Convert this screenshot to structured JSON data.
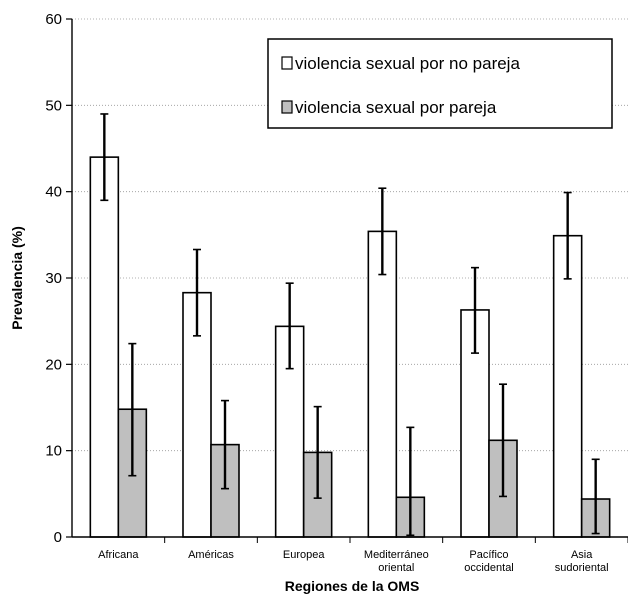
{
  "chart_data": {
    "type": "bar",
    "xlabel": "Regiones de la OMS",
    "ylabel": "Prevalencia (%)",
    "ylim": [
      0,
      60
    ],
    "yticks": [
      0,
      10,
      20,
      30,
      40,
      50,
      60
    ],
    "grid": "horizontal dotted",
    "legend_position": "top-right",
    "categories": [
      [
        "Africana"
      ],
      [
        "Américas"
      ],
      [
        "Europea"
      ],
      [
        "Mediterráneo",
        "oriental"
      ],
      [
        "Pacífico",
        "occidental"
      ],
      [
        "Asia",
        "sudoriental"
      ]
    ],
    "series": [
      {
        "name": "violencia sexual por no pareja",
        "color": "#ffffff",
        "values": [
          44,
          28.3,
          24.4,
          35.4,
          26.3,
          34.9
        ],
        "error_low": [
          39,
          23.3,
          19.5,
          30.4,
          21.3,
          29.9
        ],
        "error_high": [
          49,
          33.3,
          29.4,
          40.4,
          31.2,
          39.9
        ]
      },
      {
        "name": "violencia sexual por pareja",
        "color": "#bfbfbf",
        "values": [
          14.8,
          10.7,
          9.8,
          4.6,
          11.2,
          4.4
        ],
        "error_low": [
          7.1,
          5.6,
          4.5,
          0.2,
          4.7,
          0.4
        ],
        "error_high": [
          22.4,
          15.8,
          15.1,
          12.7,
          17.7,
          9.0
        ]
      }
    ]
  }
}
